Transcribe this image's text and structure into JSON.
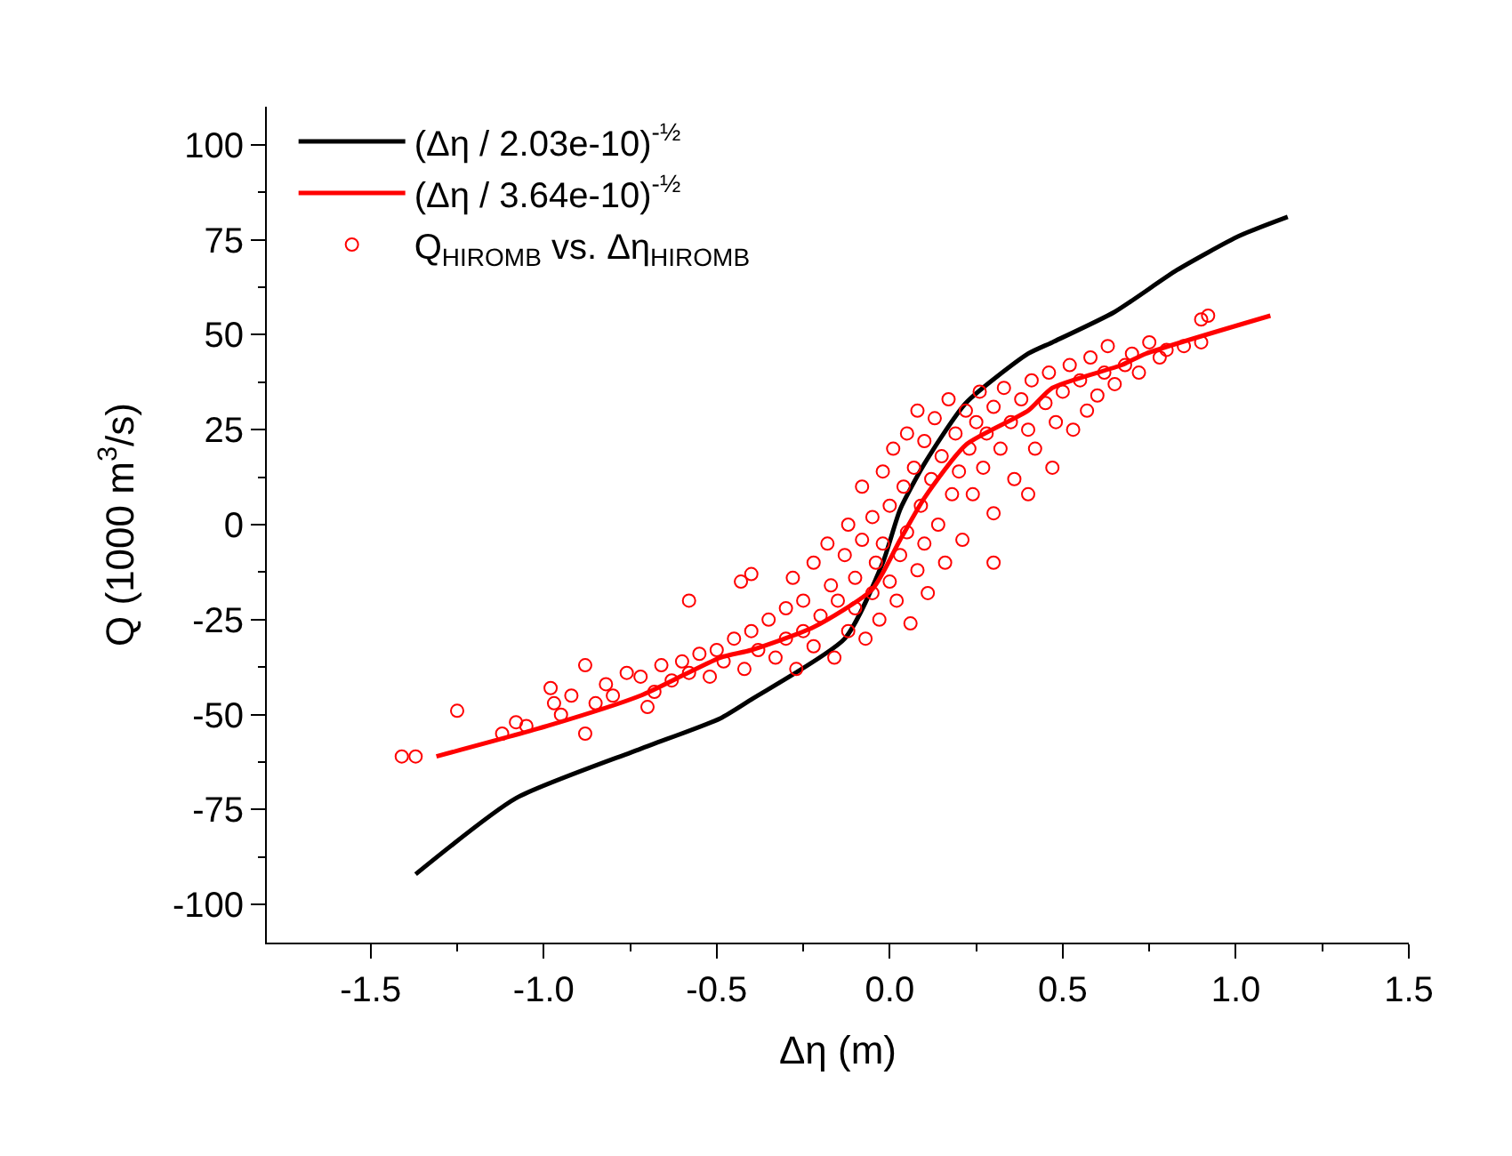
{
  "chart_data": {
    "type": "line",
    "xlabel": "Δη (m)",
    "ylabel": "Q (1000 m$^{3}$/s)",
    "xlim": [
      -1.8,
      1.5
    ],
    "ylim": [
      -110,
      110
    ],
    "xticks": [
      -1.5,
      {
        "value": -1.0,
        "label": "-1.0"
      },
      -0.5,
      {
        "value": 0,
        "label": "0.0"
      },
      0.5,
      {
        "value": 1.0,
        "label": "1.0"
      },
      1.5
    ],
    "yticks": [
      -100,
      -75,
      -50,
      -25,
      0,
      25,
      50,
      75,
      100
    ],
    "legend": "top left",
    "series": [
      {
        "name": "(Δη / 2.03e-10)$^{-½}$",
        "marker": "none",
        "line_style": "solid",
        "color": "#000000",
        "x": [
          -1.37,
          -1.08,
          -0.72,
          -0.49,
          -0.4,
          -0.13,
          -0.02,
          0.03,
          0.1,
          0.22,
          0.4,
          0.47,
          0.65,
          0.83,
          1.01,
          1.15
        ],
        "values": [
          -92,
          -72,
          -59,
          -51,
          -46,
          -30,
          -10,
          4,
          16,
          32,
          45,
          48,
          56,
          67,
          76,
          81
        ]
      },
      {
        "name": "(Δη / 3.64e-10)$^{-½}$",
        "marker": "none",
        "line_style": "solid",
        "color": "#ff0000",
        "x": [
          -1.31,
          -0.99,
          -0.72,
          -0.49,
          -0.4,
          -0.22,
          -0.05,
          0.03,
          0.1,
          0.22,
          0.4,
          0.47,
          0.67,
          0.74,
          1.1
        ],
        "values": [
          -61,
          -53,
          -45,
          -35,
          -33,
          -27,
          -17,
          -4,
          7,
          21,
          30,
          36,
          42,
          45,
          55
        ]
      },
      {
        "name": "Q$_{HIROMB}$ vs. Δη$_{HIROMB}$",
        "type": "scatter",
        "marker": "circle",
        "color": "#ff0000",
        "x": [
          -1.41,
          -1.37,
          -1.25,
          -1.12,
          -1.08,
          -1.05,
          -0.98,
          -0.97,
          -0.95,
          -0.92,
          -0.88,
          -0.88,
          -0.85,
          -0.82,
          -0.8,
          -0.76,
          -0.72,
          -0.7,
          -0.68,
          -0.66,
          -0.63,
          -0.6,
          -0.58,
          -0.55,
          -0.52,
          -0.5,
          -0.48,
          -0.45,
          -0.43,
          -0.42,
          -0.4,
          -0.38,
          -0.35,
          -0.33,
          -0.3,
          -0.3,
          -0.28,
          -0.27,
          -0.25,
          -0.25,
          -0.22,
          -0.22,
          -0.2,
          -0.18,
          -0.17,
          -0.16,
          -0.15,
          -0.13,
          -0.12,
          -0.12,
          -0.1,
          -0.1,
          -0.08,
          -0.08,
          -0.07,
          -0.05,
          -0.05,
          -0.04,
          -0.03,
          -0.02,
          -0.02,
          0.0,
          0.0,
          0.01,
          0.02,
          0.03,
          0.04,
          0.05,
          0.05,
          0.06,
          0.07,
          0.08,
          0.08,
          0.09,
          0.1,
          0.1,
          0.11,
          0.12,
          0.13,
          0.14,
          0.15,
          0.16,
          0.17,
          0.18,
          0.19,
          0.2,
          0.21,
          0.22,
          0.23,
          0.24,
          0.25,
          0.26,
          0.27,
          0.28,
          0.3,
          0.3,
          0.32,
          0.33,
          0.35,
          0.36,
          0.38,
          0.4,
          0.41,
          0.42,
          0.45,
          0.46,
          0.48,
          0.5,
          0.52,
          0.53,
          0.55,
          0.57,
          0.58,
          0.6,
          0.62,
          0.63,
          0.65,
          0.68,
          0.7,
          0.72,
          0.75,
          0.78,
          0.8,
          0.85,
          0.9,
          0.9,
          0.92,
          0.47,
          0.3,
          0.4,
          -0.58,
          -0.4
        ],
        "values": [
          -61,
          -61,
          -49,
          -55,
          -52,
          -53,
          -43,
          -47,
          -50,
          -45,
          -37,
          -55,
          -47,
          -42,
          -45,
          -39,
          -40,
          -48,
          -44,
          -37,
          -41,
          -36,
          -39,
          -34,
          -40,
          -33,
          -36,
          -30,
          -15,
          -38,
          -28,
          -33,
          -25,
          -35,
          -22,
          -30,
          -14,
          -38,
          -20,
          -28,
          -10,
          -32,
          -24,
          -5,
          -16,
          -35,
          -20,
          -8,
          -28,
          0,
          -14,
          -22,
          -4,
          10,
          -30,
          -18,
          2,
          -10,
          -25,
          14,
          -5,
          -15,
          5,
          20,
          -20,
          -8,
          10,
          24,
          -2,
          -26,
          15,
          -12,
          30,
          5,
          22,
          -5,
          -18,
          12,
          28,
          0,
          18,
          -10,
          33,
          8,
          24,
          14,
          -4,
          30,
          20,
          8,
          27,
          35,
          15,
          24,
          31,
          3,
          20,
          36,
          27,
          12,
          33,
          25,
          38,
          20,
          32,
          40,
          27,
          35,
          42,
          25,
          38,
          30,
          44,
          34,
          40,
          47,
          37,
          42,
          45,
          40,
          48,
          44,
          46,
          47,
          48,
          54,
          55,
          15,
          -10,
          8,
          -20,
          -13
        ]
      }
    ]
  }
}
